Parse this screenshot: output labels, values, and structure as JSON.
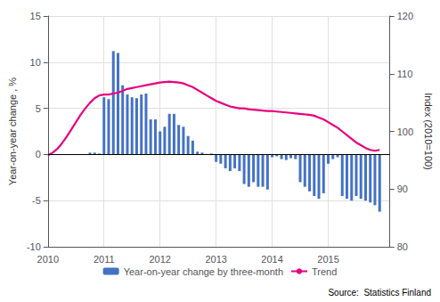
{
  "chart_data": {
    "type": "bar",
    "ylabel": "Year-on-year change , %",
    "y2label": "Index (2010=100)",
    "source": "Source:  Statistics Finland",
    "xlim": [
      2010,
      2016.1
    ],
    "xticks": [
      2010,
      2011,
      2012,
      2013,
      2014,
      2015
    ],
    "ylim": [
      -10,
      15
    ],
    "yticks": [
      -10,
      -5,
      0,
      5,
      10,
      15
    ],
    "y2lim": [
      80,
      120
    ],
    "y2ticks": [
      80,
      90,
      100,
      110,
      120
    ],
    "grid": true,
    "legend": "bottom",
    "series": [
      {
        "name": "Year-on-year change by three-month",
        "type": "bar",
        "color": "#4472C4",
        "x": [
          2010.75,
          2010.833,
          2010.917,
          2011.0,
          2011.083,
          2011.167,
          2011.25,
          2011.333,
          2011.417,
          2011.5,
          2011.583,
          2011.667,
          2011.75,
          2011.833,
          2011.917,
          2012.0,
          2012.083,
          2012.167,
          2012.25,
          2012.333,
          2012.417,
          2012.5,
          2012.583,
          2012.667,
          2012.75,
          2012.833,
          2012.917,
          2013.0,
          2013.083,
          2013.167,
          2013.25,
          2013.333,
          2013.417,
          2013.5,
          2013.583,
          2013.667,
          2013.75,
          2013.833,
          2013.917,
          2014.0,
          2014.083,
          2014.167,
          2014.25,
          2014.333,
          2014.417,
          2014.5,
          2014.583,
          2014.667,
          2014.75,
          2014.833,
          2014.917,
          2015.0,
          2015.083,
          2015.167,
          2015.25,
          2015.333,
          2015.417,
          2015.5,
          2015.583,
          2015.667,
          2015.75,
          2015.833,
          2015.917
        ],
        "values": [
          0.2,
          0.2,
          0.1,
          6.2,
          6.0,
          11.2,
          11.0,
          7.5,
          6.5,
          6.2,
          6.1,
          6.5,
          6.6,
          3.8,
          3.8,
          2.5,
          3.0,
          4.4,
          4.4,
          3.2,
          3.0,
          2.0,
          1.5,
          0.3,
          0.2,
          0.05,
          0.1,
          -0.8,
          -1.0,
          -1.5,
          -1.8,
          -1.5,
          -1.8,
          -3.2,
          -3.5,
          -3.0,
          -3.5,
          -3.5,
          -3.8,
          -0.3,
          -0.2,
          -0.5,
          -0.6,
          -0.4,
          -0.5,
          -3.0,
          -3.5,
          -4.0,
          -4.5,
          -4.8,
          -4.2,
          -1.0,
          -0.5,
          -0.3,
          -4.5,
          -4.8,
          -5.0,
          -4.5,
          -4.8,
          -5.0,
          -5.2,
          -5.5,
          -6.2
        ]
      },
      {
        "name": "Trend",
        "type": "line",
        "color": "#E8007F",
        "x": [
          2010.0,
          2010.083,
          2010.167,
          2010.25,
          2010.333,
          2010.417,
          2010.5,
          2010.583,
          2010.667,
          2010.75,
          2010.833,
          2010.917,
          2011.0,
          2011.083,
          2011.167,
          2011.25,
          2011.333,
          2011.417,
          2011.5,
          2011.583,
          2011.667,
          2011.75,
          2011.833,
          2011.917,
          2012.0,
          2012.083,
          2012.167,
          2012.25,
          2012.333,
          2012.417,
          2012.5,
          2012.583,
          2012.667,
          2012.75,
          2012.833,
          2012.917,
          2013.0,
          2013.083,
          2013.167,
          2013.25,
          2013.333,
          2013.417,
          2013.5,
          2013.583,
          2013.667,
          2013.75,
          2013.833,
          2013.917,
          2014.0,
          2014.083,
          2014.167,
          2014.25,
          2014.333,
          2014.417,
          2014.5,
          2014.583,
          2014.667,
          2014.75,
          2014.833,
          2014.917,
          2015.0,
          2015.083,
          2015.167,
          2015.25,
          2015.333,
          2015.417,
          2015.5,
          2015.583,
          2015.667,
          2015.75,
          2015.833,
          2015.917
        ],
        "values": [
          -0.1,
          0.2,
          0.6,
          1.2,
          1.9,
          2.7,
          3.5,
          4.3,
          5.0,
          5.6,
          6.1,
          6.4,
          6.5,
          6.5,
          6.6,
          6.7,
          6.9,
          7.1,
          7.2,
          7.3,
          7.4,
          7.5,
          7.6,
          7.7,
          7.8,
          7.85,
          7.9,
          7.85,
          7.8,
          7.7,
          7.5,
          7.3,
          7.0,
          6.7,
          6.4,
          6.1,
          5.8,
          5.6,
          5.4,
          5.2,
          5.1,
          5.0,
          5.0,
          4.9,
          4.85,
          4.8,
          4.75,
          4.7,
          4.7,
          4.65,
          4.6,
          4.55,
          4.5,
          4.45,
          4.4,
          4.35,
          4.3,
          4.2,
          4.0,
          3.8,
          3.5,
          3.2,
          2.9,
          2.5,
          2.1,
          1.7,
          1.3,
          1.0,
          0.7,
          0.5,
          0.4,
          0.5
        ]
      }
    ]
  }
}
